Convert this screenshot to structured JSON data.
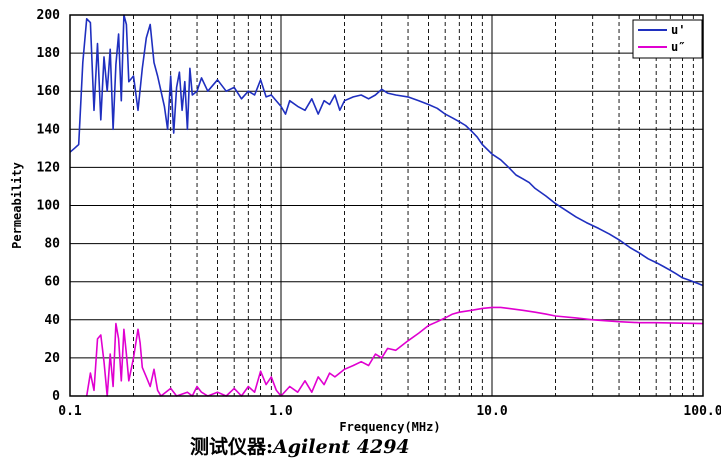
{
  "chart_data": {
    "type": "line",
    "x_scale": "log",
    "xlim": [
      0.1,
      100.0
    ],
    "ylim": [
      0,
      200
    ],
    "xlabel": "Frequency(MHz)",
    "ylabel": "Permeability",
    "x_ticks": [
      {
        "value": 0.1,
        "label": "0.1"
      },
      {
        "value": 1.0,
        "label": "1.0"
      },
      {
        "value": 10.0,
        "label": "10.0"
      },
      {
        "value": 100.0,
        "label": "100.0"
      }
    ],
    "y_ticks": [
      0,
      20,
      40,
      60,
      80,
      100,
      120,
      140,
      160,
      180,
      200
    ],
    "grid": true,
    "legend_position": "top-right",
    "series": [
      {
        "name": "u'",
        "color": "#1f2fbf",
        "points": [
          [
            0.1,
            128
          ],
          [
            0.105,
            130
          ],
          [
            0.11,
            132
          ],
          [
            0.115,
            175
          ],
          [
            0.12,
            198
          ],
          [
            0.125,
            196
          ],
          [
            0.13,
            150
          ],
          [
            0.135,
            185
          ],
          [
            0.14,
            145
          ],
          [
            0.145,
            178
          ],
          [
            0.15,
            160
          ],
          [
            0.155,
            182
          ],
          [
            0.16,
            140
          ],
          [
            0.165,
            174
          ],
          [
            0.17,
            190
          ],
          [
            0.175,
            155
          ],
          [
            0.18,
            200
          ],
          [
            0.185,
            195
          ],
          [
            0.19,
            165
          ],
          [
            0.2,
            168
          ],
          [
            0.21,
            150
          ],
          [
            0.22,
            172
          ],
          [
            0.23,
            188
          ],
          [
            0.24,
            195
          ],
          [
            0.25,
            175
          ],
          [
            0.26,
            168
          ],
          [
            0.27,
            160
          ],
          [
            0.28,
            152
          ],
          [
            0.29,
            140
          ],
          [
            0.3,
            168
          ],
          [
            0.31,
            138
          ],
          [
            0.32,
            162
          ],
          [
            0.33,
            170
          ],
          [
            0.34,
            150
          ],
          [
            0.35,
            165
          ],
          [
            0.36,
            140
          ],
          [
            0.37,
            172
          ],
          [
            0.38,
            158
          ],
          [
            0.4,
            160
          ],
          [
            0.42,
            167
          ],
          [
            0.45,
            160
          ],
          [
            0.5,
            166
          ],
          [
            0.55,
            160
          ],
          [
            0.6,
            162
          ],
          [
            0.65,
            156
          ],
          [
            0.7,
            160
          ],
          [
            0.75,
            158
          ],
          [
            0.8,
            166
          ],
          [
            0.85,
            157
          ],
          [
            0.9,
            158
          ],
          [
            1.0,
            152
          ],
          [
            1.05,
            148
          ],
          [
            1.1,
            155
          ],
          [
            1.2,
            152
          ],
          [
            1.3,
            150
          ],
          [
            1.4,
            156
          ],
          [
            1.5,
            148
          ],
          [
            1.6,
            155
          ],
          [
            1.7,
            153
          ],
          [
            1.8,
            158
          ],
          [
            1.9,
            150
          ],
          [
            2.0,
            155
          ],
          [
            2.2,
            157
          ],
          [
            2.4,
            158
          ],
          [
            2.6,
            156
          ],
          [
            2.8,
            158
          ],
          [
            3.0,
            161
          ],
          [
            3.2,
            159
          ],
          [
            3.5,
            158
          ],
          [
            4.0,
            157
          ],
          [
            4.5,
            155
          ],
          [
            5.0,
            153
          ],
          [
            5.5,
            151
          ],
          [
            6.0,
            148
          ],
          [
            6.5,
            146
          ],
          [
            7.0,
            144
          ],
          [
            7.5,
            142
          ],
          [
            8.0,
            139
          ],
          [
            8.5,
            136
          ],
          [
            9.0,
            132
          ],
          [
            10.0,
            127
          ],
          [
            11.0,
            124
          ],
          [
            12.0,
            120
          ],
          [
            13.0,
            116
          ],
          [
            14.0,
            114
          ],
          [
            15.0,
            112
          ],
          [
            16.0,
            109
          ],
          [
            18.0,
            105
          ],
          [
            20.0,
            101
          ],
          [
            22.0,
            98
          ],
          [
            25.0,
            94
          ],
          [
            28.0,
            91
          ],
          [
            32.0,
            88
          ],
          [
            36.0,
            85
          ],
          [
            40.0,
            82
          ],
          [
            45.0,
            78
          ],
          [
            50.0,
            75
          ],
          [
            55.0,
            72
          ],
          [
            60.0,
            70
          ],
          [
            65.0,
            68
          ],
          [
            70.0,
            66
          ],
          [
            75.0,
            64
          ],
          [
            80.0,
            62
          ],
          [
            85.0,
            61
          ],
          [
            90.0,
            60
          ],
          [
            95.0,
            59
          ],
          [
            100.0,
            58
          ]
        ]
      },
      {
        "name": "u″",
        "color": "#e000d0",
        "points": [
          [
            0.12,
            0
          ],
          [
            0.125,
            12
          ],
          [
            0.13,
            3
          ],
          [
            0.135,
            30
          ],
          [
            0.14,
            32
          ],
          [
            0.145,
            18
          ],
          [
            0.15,
            0
          ],
          [
            0.155,
            22
          ],
          [
            0.16,
            5
          ],
          [
            0.165,
            38
          ],
          [
            0.17,
            30
          ],
          [
            0.175,
            8
          ],
          [
            0.18,
            35
          ],
          [
            0.185,
            22
          ],
          [
            0.19,
            8
          ],
          [
            0.2,
            20
          ],
          [
            0.21,
            35
          ],
          [
            0.215,
            28
          ],
          [
            0.22,
            15
          ],
          [
            0.23,
            10
          ],
          [
            0.24,
            5
          ],
          [
            0.25,
            14
          ],
          [
            0.26,
            3
          ],
          [
            0.27,
            0
          ],
          [
            0.3,
            4
          ],
          [
            0.32,
            0
          ],
          [
            0.36,
            2
          ],
          [
            0.38,
            0
          ],
          [
            0.4,
            5
          ],
          [
            0.42,
            2
          ],
          [
            0.45,
            0
          ],
          [
            0.5,
            2
          ],
          [
            0.55,
            0
          ],
          [
            0.6,
            4
          ],
          [
            0.65,
            0
          ],
          [
            0.7,
            5
          ],
          [
            0.75,
            2
          ],
          [
            0.8,
            13
          ],
          [
            0.85,
            6
          ],
          [
            0.9,
            10
          ],
          [
            0.95,
            3
          ],
          [
            1.0,
            0
          ],
          [
            1.1,
            5
          ],
          [
            1.2,
            2
          ],
          [
            1.3,
            8
          ],
          [
            1.4,
            2
          ],
          [
            1.5,
            10
          ],
          [
            1.6,
            6
          ],
          [
            1.7,
            12
          ],
          [
            1.8,
            10
          ],
          [
            2.0,
            14
          ],
          [
            2.2,
            16
          ],
          [
            2.4,
            18
          ],
          [
            2.6,
            16
          ],
          [
            2.8,
            22
          ],
          [
            3.0,
            20
          ],
          [
            3.2,
            25
          ],
          [
            3.5,
            24
          ],
          [
            4.0,
            29
          ],
          [
            4.5,
            33
          ],
          [
            5.0,
            37
          ],
          [
            5.5,
            39
          ],
          [
            6.0,
            41
          ],
          [
            6.5,
            43
          ],
          [
            7.0,
            44
          ],
          [
            8.0,
            45
          ],
          [
            9.0,
            46
          ],
          [
            10.0,
            46.5
          ],
          [
            11.0,
            46.5
          ],
          [
            12.0,
            46
          ],
          [
            14.0,
            45
          ],
          [
            16.0,
            44
          ],
          [
            18.0,
            43
          ],
          [
            20.0,
            42
          ],
          [
            25.0,
            41
          ],
          [
            30.0,
            40
          ],
          [
            40.0,
            39
          ],
          [
            50.0,
            38.5
          ],
          [
            60.0,
            38.5
          ],
          [
            80.0,
            38.2
          ],
          [
            100.0,
            38
          ]
        ]
      }
    ]
  },
  "caption": {
    "prefix": "测试仪器:",
    "instrument": "Agilent 4294"
  }
}
